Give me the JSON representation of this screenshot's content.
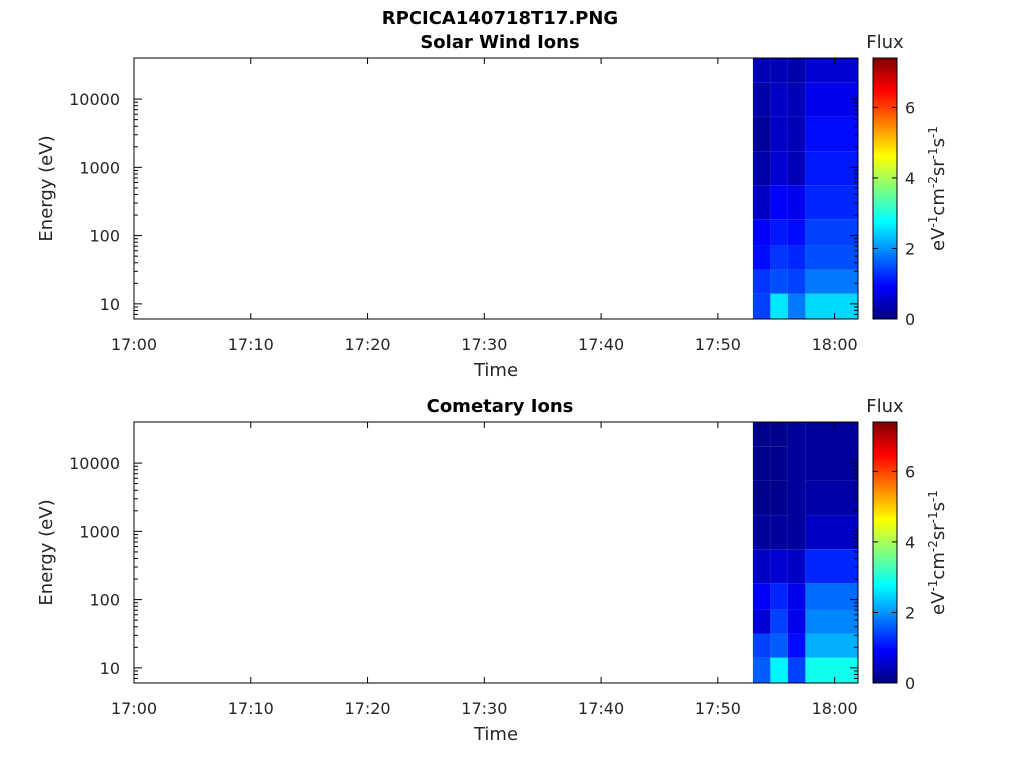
{
  "figure_title": "RPCICA140718T17.PNG",
  "chart_data": [
    {
      "type": "heatmap",
      "title": "Solar Wind Ions",
      "xlabel": "Time",
      "ylabel": "Energy (eV)",
      "yscale": "log",
      "xlim": [
        "17:00",
        "18:02"
      ],
      "ylim": [
        6,
        40000
      ],
      "x_ticks": [
        "17:00",
        "17:10",
        "17:20",
        "17:30",
        "17:40",
        "17:50",
        "18:00"
      ],
      "y_ticks": [
        "10",
        "100",
        "1000",
        "10000"
      ],
      "colorbar": {
        "label": "Flux",
        "units": "eV-1cm-2sr-1s-1",
        "range": [
          0,
          7.4
        ],
        "ticks": [
          "0",
          "2",
          "4",
          "6"
        ],
        "colormap": "jet"
      },
      "data_time_range": [
        "17:53",
        "18:02"
      ],
      "time_columns": [
        {
          "t0": "17:53.0",
          "t1": "17:54.5",
          "flux": {
            "10": 1.4,
            "20": 1.3,
            "50": 1.0,
            "100": 0.9,
            "300": 0.5,
            "1000": 0.3,
            "3000": 0.2,
            "10000": 0.3,
            "30000": 0.4
          }
        },
        {
          "t0": "17:54.5",
          "t1": "17:56.0",
          "flux": {
            "10": 2.6,
            "20": 1.5,
            "50": 1.3,
            "100": 1.1,
            "300": 0.9,
            "1000": 0.6,
            "3000": 0.5,
            "10000": 0.5,
            "30000": 0.4
          }
        },
        {
          "t0": "17:56.0",
          "t1": "17:57.5",
          "flux": {
            "10": 1.8,
            "20": 1.4,
            "50": 1.2,
            "100": 1.0,
            "300": 0.8,
            "1000": 0.4,
            "3000": 0.4,
            "10000": 0.4,
            "30000": 0.3
          }
        },
        {
          "t0": "17:57.5",
          "t1": "18:02.0",
          "flux": {
            "10": 2.5,
            "20": 1.8,
            "50": 1.5,
            "100": 1.4,
            "300": 1.2,
            "1000": 1.1,
            "3000": 1.0,
            "10000": 0.8,
            "30000": 0.6
          }
        }
      ]
    },
    {
      "type": "heatmap",
      "title": "Cometary Ions",
      "xlabel": "Time",
      "ylabel": "Energy (eV)",
      "yscale": "log",
      "xlim": [
        "17:00",
        "18:02"
      ],
      "ylim": [
        6,
        40000
      ],
      "x_ticks": [
        "17:00",
        "17:10",
        "17:20",
        "17:30",
        "17:40",
        "17:50",
        "18:00"
      ],
      "y_ticks": [
        "10",
        "100",
        "1000",
        "10000"
      ],
      "colorbar": {
        "label": "Flux",
        "units": "eV-1cm-2sr-1s-1",
        "range": [
          0,
          7.4
        ],
        "ticks": [
          "0",
          "2",
          "4",
          "6"
        ],
        "colormap": "jet"
      },
      "data_time_range": [
        "17:53",
        "18:02"
      ],
      "time_columns": [
        {
          "t0": "17:53.0",
          "t1": "17:54.5",
          "flux": {
            "10": 1.6,
            "20": 1.4,
            "50": 0.6,
            "100": 0.9,
            "300": 0.5,
            "1000": 0.2,
            "3000": 0.1,
            "10000": 0.1,
            "30000": 0.1
          }
        },
        {
          "t0": "17:54.5",
          "t1": "17:56.0",
          "flux": {
            "10": 2.7,
            "20": 1.6,
            "50": 1.4,
            "100": 1.2,
            "300": 0.6,
            "1000": 0.2,
            "3000": 0.1,
            "10000": 0.1,
            "30000": 0.1
          }
        },
        {
          "t0": "17:56.0",
          "t1": "17:57.5",
          "flux": {
            "10": 1.4,
            "20": 1.0,
            "50": 0.8,
            "100": 0.8,
            "300": 0.5,
            "1000": 0.2
          }
        },
        {
          "t0": "17:57.5",
          "t1": "18:02.0",
          "flux": {
            "10": 2.9,
            "20": 2.2,
            "50": 1.9,
            "100": 1.7,
            "300": 1.2,
            "1000": 0.5,
            "3000": 0.3,
            "10000": 0.2
          }
        }
      ]
    }
  ]
}
